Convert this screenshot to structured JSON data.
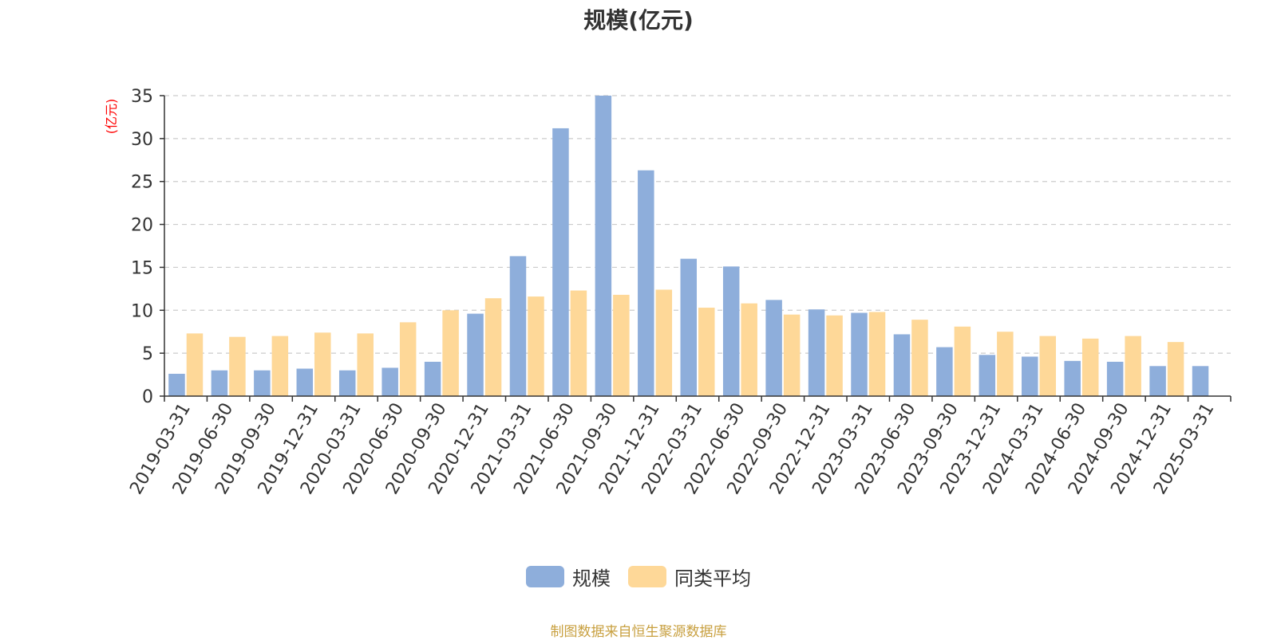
{
  "chart_data": {
    "type": "bar",
    "title": "规模(亿元)",
    "ylabel": "(亿元)",
    "xlabel": "",
    "ylim": [
      0,
      35
    ],
    "yticks": [
      0,
      5,
      10,
      15,
      20,
      25,
      30,
      35
    ],
    "grid": true,
    "legend_position": "bottom",
    "categories": [
      "2019-03-31",
      "2019-06-30",
      "2019-09-30",
      "2019-12-31",
      "2020-03-31",
      "2020-06-30",
      "2020-09-30",
      "2020-12-31",
      "2021-03-31",
      "2021-06-30",
      "2021-09-30",
      "2021-12-31",
      "2022-03-31",
      "2022-06-30",
      "2022-09-30",
      "2022-12-31",
      "2023-03-31",
      "2023-06-30",
      "2023-09-30",
      "2023-12-31",
      "2024-03-31",
      "2024-06-30",
      "2024-09-30",
      "2024-12-31",
      "2025-03-31"
    ],
    "series": [
      {
        "name": "规模",
        "color": "#8eaedb",
        "values": [
          2.6,
          3.0,
          3.0,
          3.2,
          3.0,
          3.3,
          4.0,
          9.6,
          16.3,
          31.2,
          35.0,
          26.3,
          16.0,
          15.1,
          11.2,
          10.1,
          9.7,
          7.2,
          5.7,
          4.8,
          4.6,
          4.1,
          4.0,
          3.5,
          3.5
        ]
      },
      {
        "name": "同类平均",
        "color": "#fed898",
        "values": [
          7.3,
          6.9,
          7.0,
          7.4,
          7.3,
          8.6,
          10.0,
          11.4,
          11.6,
          12.3,
          11.8,
          12.4,
          10.3,
          10.8,
          9.5,
          9.4,
          9.8,
          8.9,
          8.1,
          7.5,
          7.0,
          6.7,
          7.0,
          6.3,
          null
        ]
      }
    ]
  },
  "colors": {
    "title": "#333333",
    "axis_label": "#ff0000",
    "tick_text": "#333333",
    "axis_line": "#333333",
    "grid": "#cccccc",
    "source": "#c8a040"
  },
  "legend": {
    "items": [
      "规模",
      "同类平均"
    ]
  },
  "footer": {
    "source": "制图数据来自恒生聚源数据库"
  }
}
